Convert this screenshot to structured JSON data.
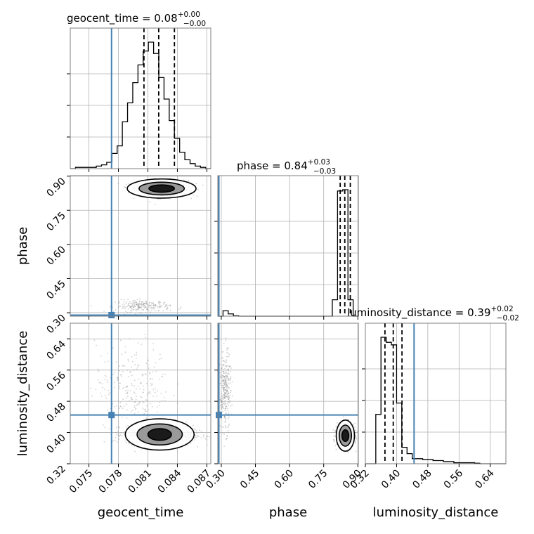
{
  "chart_data": {
    "type": "corner",
    "parameters": [
      "geocent_time",
      "phase",
      "luminosity_distance"
    ],
    "truths": {
      "geocent_time": 0.0773,
      "phase": 0.2894,
      "luminosity_distance": 0.4448
    },
    "colors": {
      "truth": "#4682b4",
      "hist": "#000000",
      "grid": "#b0b0b0",
      "points": "#7f7f7f"
    },
    "panels": [
      {
        "id": "geocent_time_hist",
        "title": {
          "param": "geocent_time",
          "value": "0.08",
          "plus": "+0.00",
          "minus": "−0.00"
        },
        "xlim": [
          0.0731,
          0.0874
        ],
        "bins": [
          0.0731,
          0.07363,
          0.07416,
          0.07469,
          0.07522,
          0.07575,
          0.07628,
          0.07681,
          0.07734,
          0.07787,
          0.0784,
          0.07893,
          0.07946,
          0.07999,
          0.08052,
          0.08105,
          0.08158,
          0.08211,
          0.08264,
          0.08317,
          0.0837,
          0.08423,
          0.08476,
          0.08529,
          0.08582,
          0.08635,
          0.08688,
          0.0874
        ],
        "counts": [
          0,
          1,
          1,
          1,
          1,
          2,
          3,
          5,
          12,
          18,
          37,
          52,
          68,
          82,
          93,
          100,
          91,
          72,
          55,
          38,
          24,
          13,
          7,
          4,
          2,
          1,
          0
        ],
        "quantiles": [
          0.0806,
          0.0821,
          0.0837
        ],
        "truth": 0.0773
      },
      {
        "id": "phase_hist",
        "title": {
          "param": "phase",
          "value": "0.84",
          "plus": "+0.03",
          "minus": "−0.03"
        },
        "xlim": [
          0.2848,
          0.9021
        ],
        "bins": [
          0.2848,
          0.3077,
          0.3305,
          0.3534,
          0.3763,
          0.3991,
          0.422,
          0.4449,
          0.4677,
          0.4906,
          0.5134,
          0.5363,
          0.5592,
          0.582,
          0.6049,
          0.6278,
          0.6506,
          0.6735,
          0.6964,
          0.7192,
          0.7421,
          0.765,
          0.7878,
          0.8107,
          0.8335,
          0.8564,
          0.8793,
          0.9021
        ],
        "counts": [
          0,
          4.3,
          1.8,
          0.3,
          0,
          0,
          0,
          0,
          0,
          0,
          0,
          0,
          0,
          0,
          0,
          0,
          0,
          0,
          0,
          0,
          0,
          0,
          13,
          99,
          100,
          13,
          0
        ],
        "quantiles": [
          0.8224,
          0.8426,
          0.8668
        ],
        "truth": 0.2894
      },
      {
        "id": "luminosity_distance_hist",
        "title": {
          "param": "luminosity_distance",
          "value": "0.39",
          "plus": "+0.02",
          "minus": "−0.02"
        },
        "xlim": [
          0.32,
          0.68
        ],
        "bins": [
          0.32,
          0.3333,
          0.3467,
          0.36,
          0.3733,
          0.3867,
          0.4,
          0.4133,
          0.4267,
          0.44,
          0.4533,
          0.4667,
          0.48,
          0.4933,
          0.5067,
          0.52,
          0.5333,
          0.5467,
          0.56,
          0.5733,
          0.5867,
          0.6,
          0.6133,
          0.6267,
          0.64,
          0.6533,
          0.6667,
          0.68
        ],
        "counts": [
          0,
          0,
          39,
          100,
          96,
          94,
          48,
          13,
          8,
          4,
          4,
          3.3,
          3.3,
          2.5,
          2.5,
          1.7,
          1.7,
          0.8,
          0.8,
          0.8,
          0.8,
          0.4,
          0,
          0,
          0,
          0,
          0
        ],
        "quantiles": [
          0.3702,
          0.3914,
          0.4138
        ],
        "truth": 0.4448
      },
      {
        "id": "phase_vs_geocent_time",
        "x": "geocent_time",
        "y": "phase",
        "xlim": [
          0.0731,
          0.0874
        ],
        "ylim": [
          0.2848,
          0.9021
        ],
        "modes": [
          {
            "cx": 0.0825,
            "cy": 0.8465,
            "sx": 0.0013,
            "sy": 0.0175,
            "n": 1000
          },
          {
            "cx": 0.0805,
            "cy": 0.329,
            "sx": 0.0014,
            "sy": 0.013,
            "n": 220
          }
        ],
        "contour_center": [
          0.0824,
          0.8455
        ],
        "contour_radii": [
          [
            0.0035,
            0.042
          ],
          [
            0.0023,
            0.028
          ],
          [
            0.0013,
            0.016
          ]
        ],
        "truth": [
          0.0773,
          0.2894
        ]
      },
      {
        "id": "luminosity_distance_vs_geocent_time",
        "x": "geocent_time",
        "y": "luminosity_distance",
        "xlim": [
          0.0731,
          0.0874
        ],
        "ylim": [
          0.32,
          0.68
        ],
        "modes": [
          {
            "cx": 0.0822,
            "cy": 0.394,
            "sx": 0.0017,
            "sy": 0.012,
            "n": 1000
          },
          {
            "cx": 0.0795,
            "cy": 0.52,
            "sx": 0.0019,
            "sy": 0.055,
            "n": 240
          }
        ],
        "contour_center": [
          0.0822,
          0.395
        ],
        "contour_radii": [
          [
            0.0035,
            0.04
          ],
          [
            0.0023,
            0.027
          ],
          [
            0.0012,
            0.015
          ]
        ],
        "truth": [
          0.0773,
          0.4448
        ]
      },
      {
        "id": "luminosity_distance_vs_phase",
        "x": "phase",
        "y": "luminosity_distance",
        "xlim": [
          0.2848,
          0.9021
        ],
        "ylim": [
          0.32,
          0.68
        ],
        "modes": [
          {
            "cx": 0.845,
            "cy": 0.394,
            "sx": 0.018,
            "sy": 0.014,
            "n": 900
          },
          {
            "cx": 0.318,
            "cy": 0.505,
            "sx": 0.012,
            "sy": 0.05,
            "n": 300
          }
        ],
        "contour_center": [
          0.845,
          0.392
        ],
        "contour_radii": [
          [
            0.04,
            0.04
          ],
          [
            0.027,
            0.027
          ],
          [
            0.015,
            0.015
          ]
        ],
        "truth": [
          0.2894,
          0.4448
        ]
      }
    ],
    "ticks": {
      "geocent_time": [
        "0.075",
        "0.078",
        "0.081",
        "0.084",
        "0.087"
      ],
      "phase": [
        "0.30",
        "0.45",
        "0.60",
        "0.75",
        "0.90"
      ],
      "luminosity_distance": [
        "0.32",
        "0.40",
        "0.48",
        "0.56",
        "0.64"
      ]
    },
    "xlabels": [
      "geocent_time",
      "phase",
      "luminosity_distance"
    ],
    "ylabels": [
      "phase",
      "luminosity_distance"
    ]
  }
}
